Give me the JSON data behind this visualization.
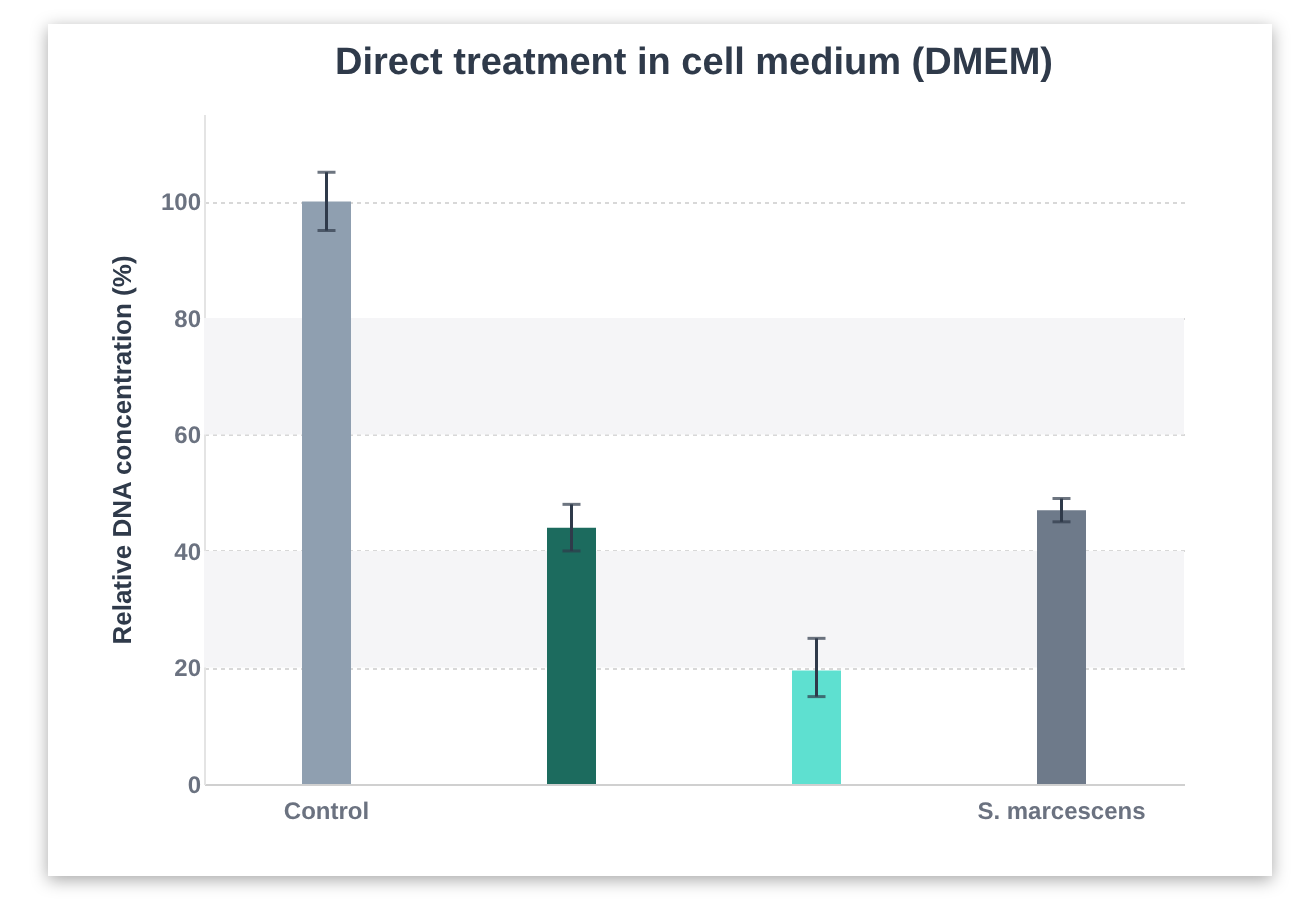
{
  "chart_data": {
    "type": "bar",
    "title": "Direct treatment in cell medium (DMEM)",
    "ylabel": "Relative DNA concentration (%)",
    "categories": [
      "Control",
      null,
      null,
      "S. marcescens"
    ],
    "values": [
      100,
      44,
      19.5,
      47
    ],
    "colors": [
      "#8f9fb0",
      "#1c6b5e",
      "#5ee0d0",
      "#6e7a8a"
    ],
    "errors": [
      [
        95,
        105
      ],
      [
        40,
        48
      ],
      [
        15,
        25
      ],
      [
        45,
        49
      ]
    ],
    "ylim": [
      0,
      115
    ],
    "yticks": [
      0,
      20,
      40,
      60,
      80,
      100
    ],
    "grid": "y",
    "bands": [
      {
        "axis": "y",
        "from": 20,
        "to": 40,
        "color": "#f5f5f7"
      },
      {
        "axis": "y",
        "from": 60,
        "to": 80,
        "color": "#f5f5f7"
      }
    ]
  }
}
